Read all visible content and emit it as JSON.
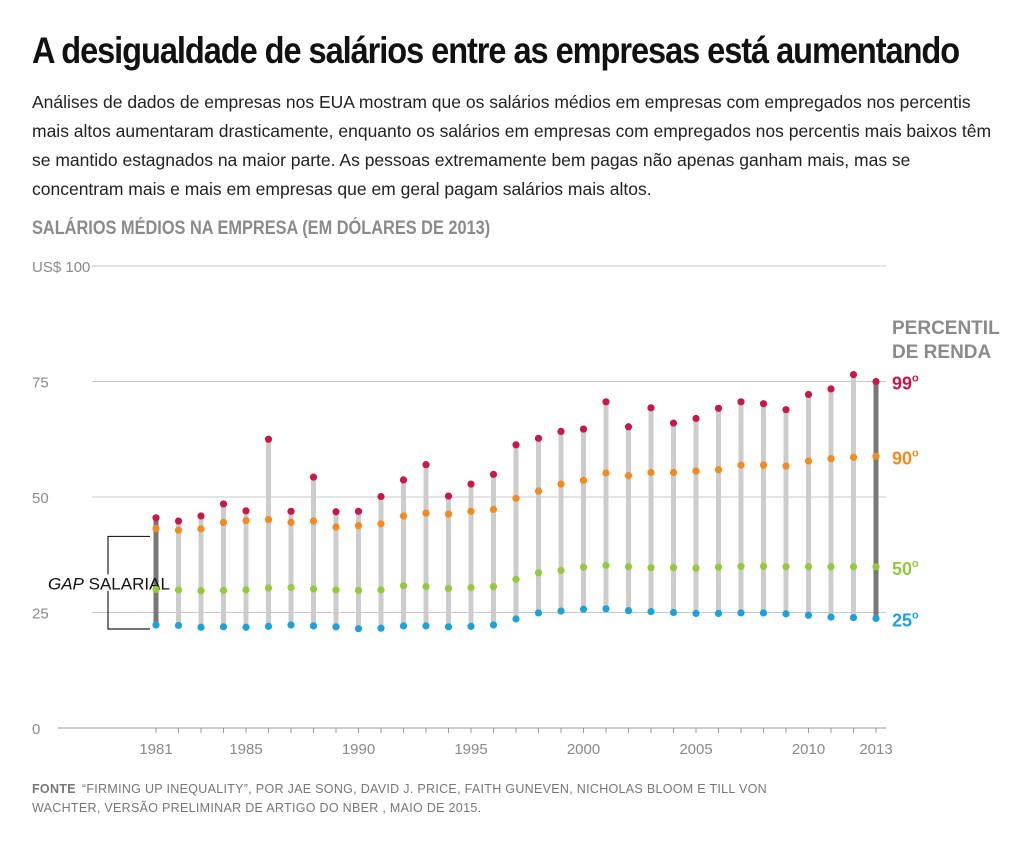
{
  "headline": "A desigualdade de salários entre as empresas está aumentando",
  "intro": "Análises de dados de empresas nos EUA mostram que os salários médios em empresas com empregados nos percentis mais altos aumentaram drasticamente, enquanto os salários em empresas com empregados nos percentis mais baixos têm se mantido estagnados na maior parte. As pessoas extremamente bem pagas não apenas ganham mais, mas se concentram mais e mais em empresas que em geral pagam salários mais altos.",
  "source": {
    "label": "FONTE",
    "text": "“FIRMING UP INEQUALITY”, POR JAE SONG, DAVID J. PRICE, FAITH GUNEVEN, NICHOLAS BLOOM E TILL VON WACHTER, VERSÃO PRELIMINAR DE ARTIGO DO NBER , MAIO DE 2015."
  },
  "chart_data": {
    "type": "scatter",
    "title": "SALÁRIOS MÉDIOS NA EMPRESA (EM DÓLARES DE 2013)",
    "ylim": [
      0,
      100
    ],
    "y_ticks": [
      {
        "value": 0,
        "label": "0"
      },
      {
        "value": 25,
        "label": "25"
      },
      {
        "value": 50,
        "label": "50"
      },
      {
        "value": 75,
        "label": "75"
      },
      {
        "value": 100,
        "label": "US$ 100"
      }
    ],
    "x": [
      1981,
      1982,
      1983,
      1984,
      1985,
      1986,
      1987,
      1988,
      1989,
      1990,
      1991,
      1992,
      1993,
      1994,
      1995,
      1996,
      1997,
      1998,
      1999,
      2000,
      2001,
      2002,
      2003,
      2004,
      2005,
      2006,
      2007,
      2008,
      2009,
      2010,
      2011,
      2012,
      2013
    ],
    "x_tick_labels": [
      "1981",
      "1985",
      "1990",
      "1995",
      "2000",
      "2005",
      "2010",
      "2013"
    ],
    "legend_title": "PERCENTIL DE RENDA",
    "series": [
      {
        "name": "99º",
        "label_main": "99",
        "label_sup": "o",
        "color": "#c8174a",
        "values": [
          45.5,
          44.8,
          45.9,
          48.5,
          47.0,
          62.5,
          46.9,
          54.3,
          46.8,
          46.9,
          50.1,
          53.7,
          57.0,
          50.2,
          52.8,
          54.9,
          61.3,
          62.7,
          64.2,
          64.7,
          70.6,
          65.2,
          69.3,
          66.0,
          67.0,
          69.2,
          70.6,
          70.2,
          68.9,
          72.2,
          73.4,
          76.5,
          75.0
        ]
      },
      {
        "name": "90º",
        "label_main": "90",
        "label_sup": "o",
        "color": "#f5891e",
        "values": [
          43.2,
          42.8,
          43.1,
          44.5,
          44.9,
          45.1,
          44.5,
          44.8,
          43.5,
          43.8,
          44.2,
          45.9,
          46.5,
          46.3,
          46.9,
          47.3,
          49.7,
          51.3,
          52.8,
          53.6,
          55.2,
          54.6,
          55.3,
          55.3,
          55.6,
          55.9,
          56.9,
          56.9,
          56.7,
          57.8,
          58.3,
          58.6,
          58.8
        ]
      },
      {
        "name": "50º",
        "label_main": "50",
        "label_sup": "o",
        "color": "#95c93d",
        "values": [
          30.0,
          29.9,
          29.7,
          29.8,
          29.9,
          30.3,
          30.4,
          30.1,
          29.9,
          29.8,
          29.9,
          30.8,
          30.6,
          30.2,
          30.4,
          30.6,
          32.2,
          33.6,
          34.1,
          34.8,
          35.2,
          34.9,
          34.7,
          34.7,
          34.6,
          34.8,
          35.0,
          35.0,
          34.9,
          34.9,
          34.9,
          34.9,
          34.9
        ]
      },
      {
        "name": "25º",
        "label_main": "25",
        "label_sup": "o",
        "color": "#1ba2dc",
        "values": [
          22.3,
          22.2,
          21.8,
          21.9,
          21.8,
          22.0,
          22.3,
          22.1,
          21.9,
          21.5,
          21.6,
          22.1,
          22.1,
          21.9,
          22.0,
          22.3,
          23.6,
          24.9,
          25.3,
          25.7,
          25.8,
          25.4,
          25.2,
          25.0,
          24.8,
          24.8,
          24.9,
          24.9,
          24.7,
          24.4,
          24.0,
          23.9,
          23.7
        ]
      }
    ],
    "annotation": {
      "prefix": "GAP",
      "suffix": " SALARIAL"
    },
    "colors": {
      "grid": "#c8c8c8",
      "range_bar": "#cccccc",
      "range_bar_end": "#777777",
      "axis_text": "#8a8a8a"
    }
  }
}
